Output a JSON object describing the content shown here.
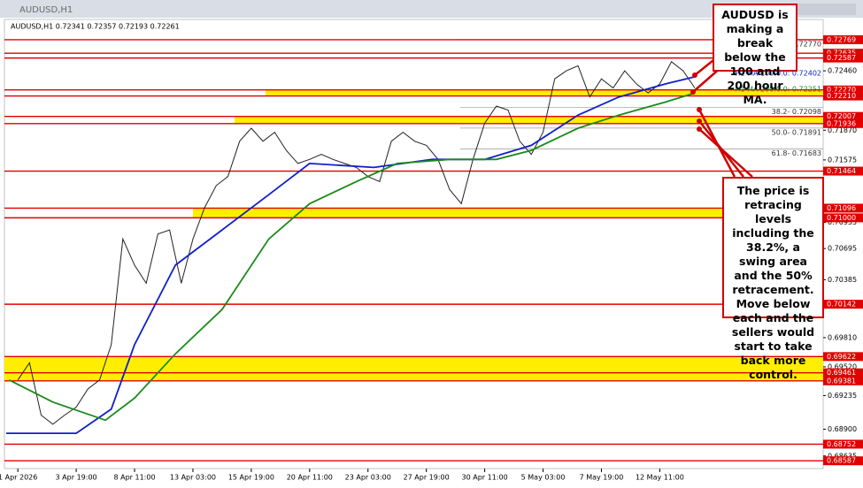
{
  "window_title": "AUDUSD,H1",
  "chart_data": {
    "type": "line",
    "info": "AUDUSD,H1  0.72341 0.72357 0.72193 0.72261",
    "xlim": [
      -0.23,
      13.8
    ],
    "ylim": [
      0.6851,
      0.7297
    ],
    "xticks": [
      {
        "value": 0,
        "label": "1 Apr 2026"
      },
      {
        "value": 1,
        "label": "3 Apr 19:00"
      },
      {
        "value": 2,
        "label": "8 Apr 11:00"
      },
      {
        "value": 3,
        "label": "13 Apr 03:00"
      },
      {
        "value": 4,
        "label": "15 Apr 19:00"
      },
      {
        "value": 5,
        "label": "20 Apr 11:00"
      },
      {
        "value": 6,
        "label": "23 Apr 03:00"
      },
      {
        "value": 7,
        "label": "27 Apr 19:00"
      },
      {
        "value": 8,
        "label": "30 Apr 11:00"
      },
      {
        "value": 9,
        "label": "5 May 03:00"
      },
      {
        "value": 10,
        "label": "7 May 19:00"
      },
      {
        "value": 11,
        "label": "12 May 11:00"
      }
    ],
    "yticks": [
      {
        "value": 0.7246,
        "label": "0.72460"
      },
      {
        "value": 0.7187,
        "label": "0.71870"
      },
      {
        "value": 0.71575,
        "label": "0.71575"
      },
      {
        "value": 0.70955,
        "label": "0.70955"
      },
      {
        "value": 0.70695,
        "label": "0.70695"
      },
      {
        "value": 0.70385,
        "label": "0.70385"
      },
      {
        "value": 0.6981,
        "label": "0.69810"
      },
      {
        "value": 0.6952,
        "label": "0.69520"
      },
      {
        "value": 0.69235,
        "label": "0.69235"
      },
      {
        "value": 0.689,
        "label": "0.68900"
      },
      {
        "value": 0.68635,
        "label": "0.68635"
      }
    ],
    "levels": [
      {
        "value": 0.72769,
        "label": "0.72769"
      },
      {
        "value": 0.72635,
        "label": "0.72635"
      },
      {
        "value": 0.72587,
        "label": "0.72587"
      },
      {
        "value": 0.7227,
        "label": "0.72270"
      },
      {
        "value": 0.7221,
        "label": "0.72210"
      },
      {
        "value": 0.72007,
        "label": "0.72007"
      },
      {
        "value": 0.71936,
        "label": "0.71936"
      },
      {
        "value": 0.71464,
        "label": "0.71464"
      },
      {
        "value": 0.71096,
        "label": "0.71096"
      },
      {
        "value": 0.71,
        "label": "0.71000"
      },
      {
        "value": 0.70142,
        "label": "0.70142"
      },
      {
        "value": 0.69622,
        "label": "0.69622"
      },
      {
        "value": 0.69461,
        "label": "0.69461"
      },
      {
        "value": 0.69381,
        "label": "0.69381"
      },
      {
        "value": 0.68752,
        "label": "0.68752"
      },
      {
        "value": 0.68587,
        "label": "0.68587"
      }
    ],
    "level_color": "#e00000",
    "zones": [
      [
        0.7221,
        0.7227
      ],
      [
        0.71936,
        0.72007
      ],
      [
        0.71,
        0.71096
      ],
      [
        0.69381,
        0.69622
      ]
    ],
    "zone_color": "#ffee00",
    "fib": [
      {
        "value": 0.7277,
        "label": "0-0.72770"
      },
      {
        "value": 0.72098,
        "label": "38.2- 0.72098"
      },
      {
        "value": 0.71891,
        "label": "50.0- 0.71891"
      },
      {
        "value": 0.71683,
        "label": "61.8- 0.71683"
      }
    ],
    "series": [
      {
        "color": "#222222",
        "x": [
          0,
          0.2,
          0.4,
          0.6,
          0.8,
          1.0,
          1.2,
          1.4,
          1.6,
          1.8,
          2.0,
          2.2,
          2.4,
          2.6,
          2.8,
          3.0,
          3.2,
          3.4,
          3.6,
          3.8,
          4.0,
          4.2,
          4.4,
          4.6,
          4.8,
          5.0,
          5.2,
          5.4,
          5.6,
          5.8,
          6.0,
          6.2,
          6.4,
          6.6,
          6.8,
          7.0,
          7.2,
          7.4,
          7.6,
          7.8,
          8.0,
          8.2,
          8.4,
          8.6,
          8.8,
          9.0,
          9.2,
          9.4,
          9.6,
          9.8,
          10.0,
          10.2,
          10.4,
          10.6,
          10.8,
          11.0,
          11.2,
          11.4,
          11.6
        ],
        "values": [
          0.6939,
          0.6956,
          0.6904,
          0.6895,
          0.6904,
          0.6912,
          0.693,
          0.6939,
          0.6974,
          0.7079,
          0.7053,
          0.7035,
          0.7084,
          0.7088,
          0.7035,
          0.7079,
          0.711,
          0.7132,
          0.7141,
          0.7176,
          0.7189,
          0.7176,
          0.7185,
          0.7167,
          0.7154,
          0.7158,
          0.7163,
          0.7158,
          0.7154,
          0.715,
          0.7141,
          0.7136,
          0.7176,
          0.7185,
          0.7176,
          0.7172,
          0.7158,
          0.7128,
          0.7114,
          0.7158,
          0.7194,
          0.7211,
          0.7207,
          0.7176,
          0.7163,
          0.7185,
          0.7238,
          0.7246,
          0.7251,
          0.722,
          0.7238,
          0.7229,
          0.7246,
          0.7233,
          0.7224,
          0.7233,
          0.7255,
          0.7246,
          0.7229
        ]
      },
      {
        "name": "H1 MA 100:0.0: 0.72402",
        "color": "#1020c8",
        "x": [
          -0.2,
          1.0,
          1.6,
          2.0,
          2.7,
          3.5,
          4.3,
          5.0,
          6.1,
          7.1,
          8.0,
          8.8,
          9.6,
          10.3,
          11.1,
          11.6
        ],
        "values": [
          0.6886,
          0.6886,
          0.691,
          0.6974,
          0.7053,
          0.7088,
          0.7123,
          0.7154,
          0.715,
          0.7158,
          0.7158,
          0.7172,
          0.7202,
          0.722,
          0.7233,
          0.724
        ]
      },
      {
        "name": "H1 MA 200:0.0: 0.72251",
        "color": "#1a8a1a",
        "x": [
          -0.15,
          0.6,
          1.5,
          2.0,
          2.7,
          3.5,
          4.3,
          5.0,
          5.8,
          6.5,
          7.4,
          8.2,
          8.8,
          9.6,
          10.3,
          11.1,
          11.6
        ],
        "values": [
          0.6939,
          0.6917,
          0.6899,
          0.6921,
          0.6965,
          0.7009,
          0.7079,
          0.7114,
          0.7136,
          0.7154,
          0.7158,
          0.7158,
          0.7167,
          0.7189,
          0.7202,
          0.7215,
          0.7224
        ]
      }
    ],
    "annotations": [
      "AUDUSD is making a break below the 100 and 200 hour MA.",
      "The price is retracing levels including the 38.2%, a swing area and the 50% retracement. Move below each and the sellers would start to take back more control."
    ]
  }
}
